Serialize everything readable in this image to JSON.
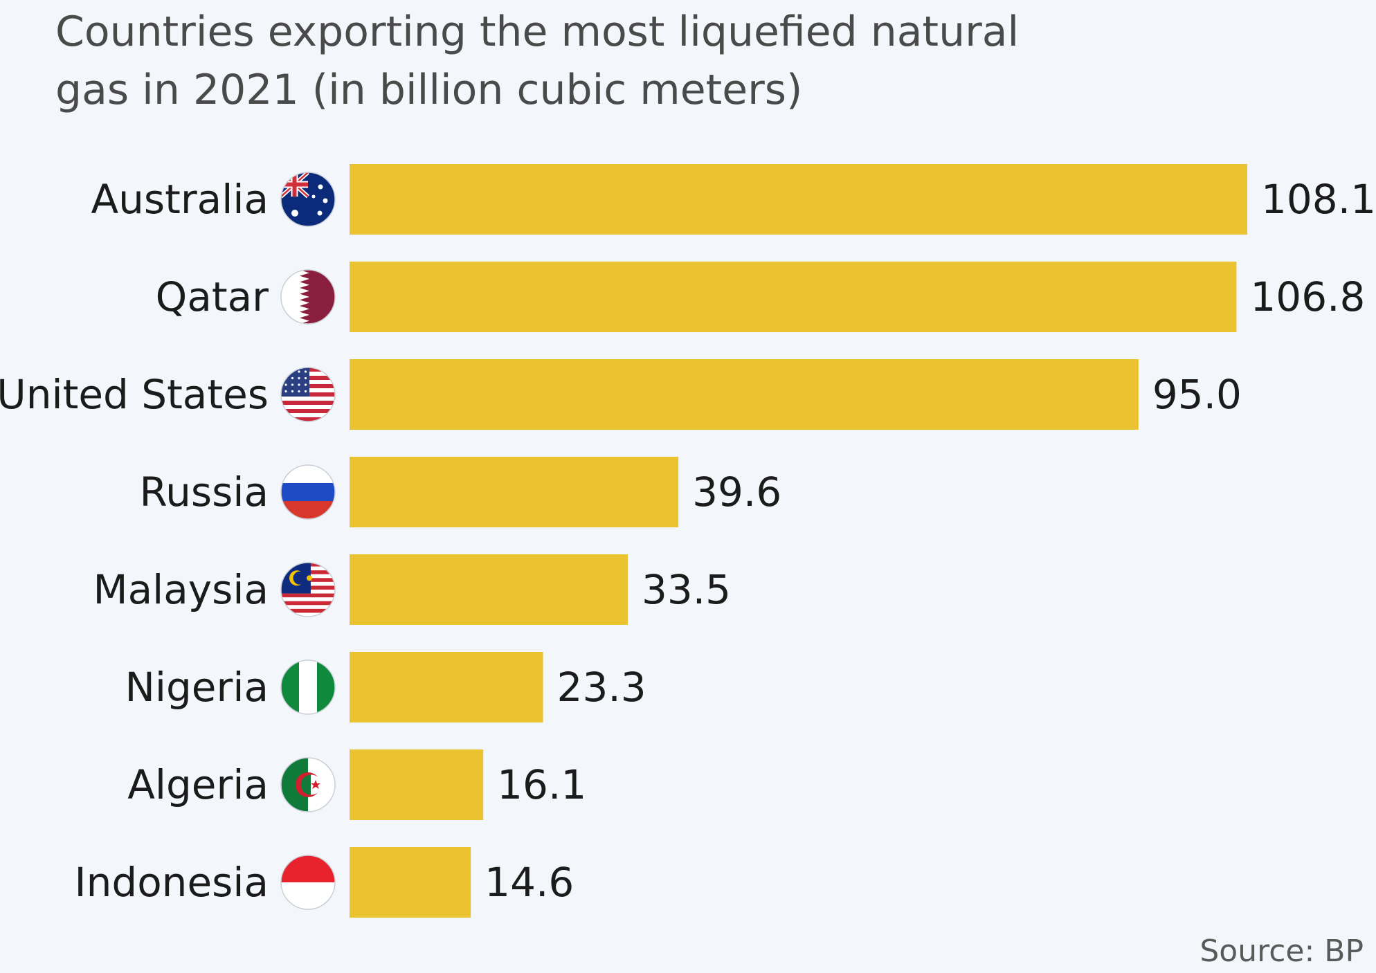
{
  "chart_data": {
    "type": "bar",
    "orientation": "horizontal",
    "title": "Countries exporting the most liquefied natural gas in 2021 (in billion cubic meters)",
    "categories": [
      "Australia",
      "Qatar",
      "United States",
      "Russia",
      "Malaysia",
      "Nigeria",
      "Algeria",
      "Indonesia"
    ],
    "values": [
      108.1,
      106.8,
      95.0,
      39.6,
      33.5,
      23.3,
      16.1,
      14.6
    ],
    "value_labels": [
      "108.1",
      "106.8",
      "95.0",
      "39.6",
      "33.5",
      "23.3",
      "16.1",
      "14.6"
    ],
    "icons": [
      "australia-flag-icon",
      "qatar-flag-icon",
      "united-states-flag-icon",
      "russia-flag-icon",
      "malaysia-flag-icon",
      "nigeria-flag-icon",
      "algeria-flag-icon",
      "indonesia-flag-icon"
    ],
    "xlim": [
      0,
      108.1
    ],
    "grid": false,
    "legend": "none",
    "bar_color": "#ebc330",
    "source": "Source: BP"
  }
}
